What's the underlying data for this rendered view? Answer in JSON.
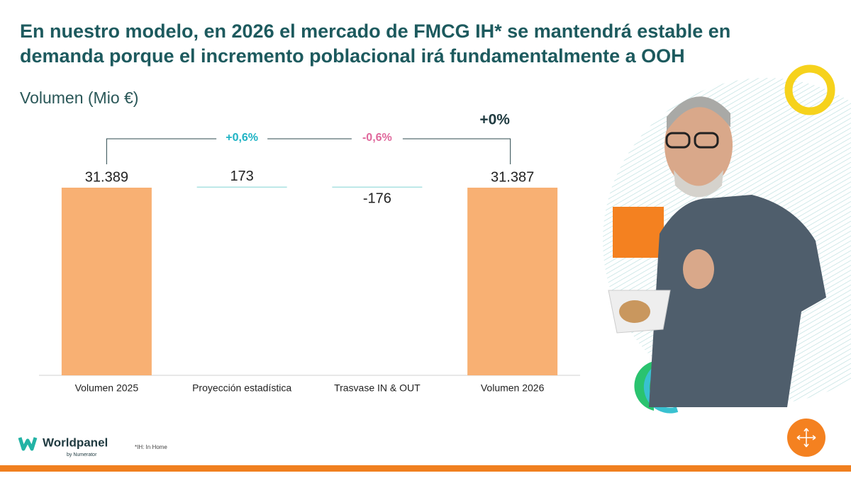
{
  "header": {
    "title_lines": [
      "En nuestro modelo, en 2026 el mercado de FMCG IH* se mantendrá estable en",
      "demanda porque el incremento poblacional irá fundamentalmente a OOH"
    ]
  },
  "chart_data": {
    "type": "waterfall",
    "subtitle": "Volumen (Mio €)",
    "categories": [
      "Volumen 2025",
      "Proyección estadística",
      "Trasvase IN & OUT",
      "Volumen 2026"
    ],
    "values": [
      31389,
      173,
      -176,
      31387
    ],
    "value_labels": [
      "31.389",
      "173",
      "-176",
      "31.387"
    ],
    "measure": [
      "absolute",
      "relative",
      "relative",
      "total"
    ],
    "total_color": "#f8b073",
    "delta_color": "#a9e1e1",
    "annotations": [
      {
        "text": "+0,6%",
        "color": "#1fb3c4"
      },
      {
        "text": "-0,6%",
        "color": "#e0689c"
      },
      {
        "text": "+0%",
        "color": "#1f3a40"
      }
    ]
  },
  "footer": {
    "logo": "Worldpanel",
    "logo_sub": "by Numerator",
    "note": "*IH: In Home"
  }
}
